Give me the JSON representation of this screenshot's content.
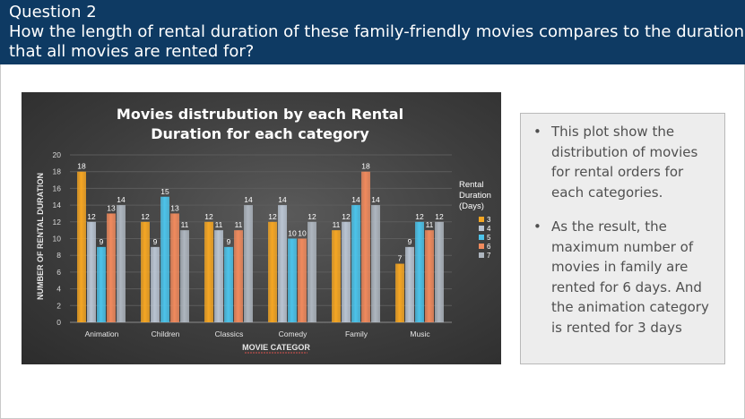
{
  "header": {
    "title": "Question 2",
    "question_line1": "How the length of rental duration of these family-friendly movies compares to the duration",
    "question_line2": "that all movies are rented for?"
  },
  "chart_data": {
    "type": "bar",
    "title_line1": "Movies distrubution by each Rental",
    "title_line2": "Duration for each category",
    "xlabel": "MOVIE CATEGOR",
    "ylabel": "NUMBER OF RENTAL DURATION",
    "ylim": [
      0,
      20
    ],
    "yticks": [
      0,
      2,
      4,
      6,
      8,
      10,
      12,
      14,
      16,
      18,
      20
    ],
    "categories": [
      "Animation",
      "Children",
      "Classics",
      "Comedy",
      "Family",
      "Music"
    ],
    "legend_title": [
      "Rental",
      "Duration",
      "(Days)"
    ],
    "legend_position": "right",
    "series": [
      {
        "name": "3",
        "color": "#f5a623",
        "values": [
          18,
          12,
          12,
          12,
          11,
          7
        ]
      },
      {
        "name": "4",
        "color": "#b9c4d2",
        "values": [
          12,
          9,
          11,
          14,
          12,
          9
        ]
      },
      {
        "name": "5",
        "color": "#4cc3ea",
        "values": [
          9,
          15,
          9,
          10,
          14,
          12
        ]
      },
      {
        "name": "6",
        "color": "#f08a5d",
        "values": [
          13,
          13,
          11,
          10,
          18,
          11
        ]
      },
      {
        "name": "7",
        "color": "#aeb6bf",
        "values": [
          14,
          11,
          14,
          12,
          14,
          12
        ]
      }
    ]
  },
  "notes": [
    "This plot show  the distribution of movies for rental orders for each categories.",
    "As the result, the maximum number of movies in family are rented for 6 days. And the animation category is rented for 3 days"
  ],
  "bullet_char": "•"
}
